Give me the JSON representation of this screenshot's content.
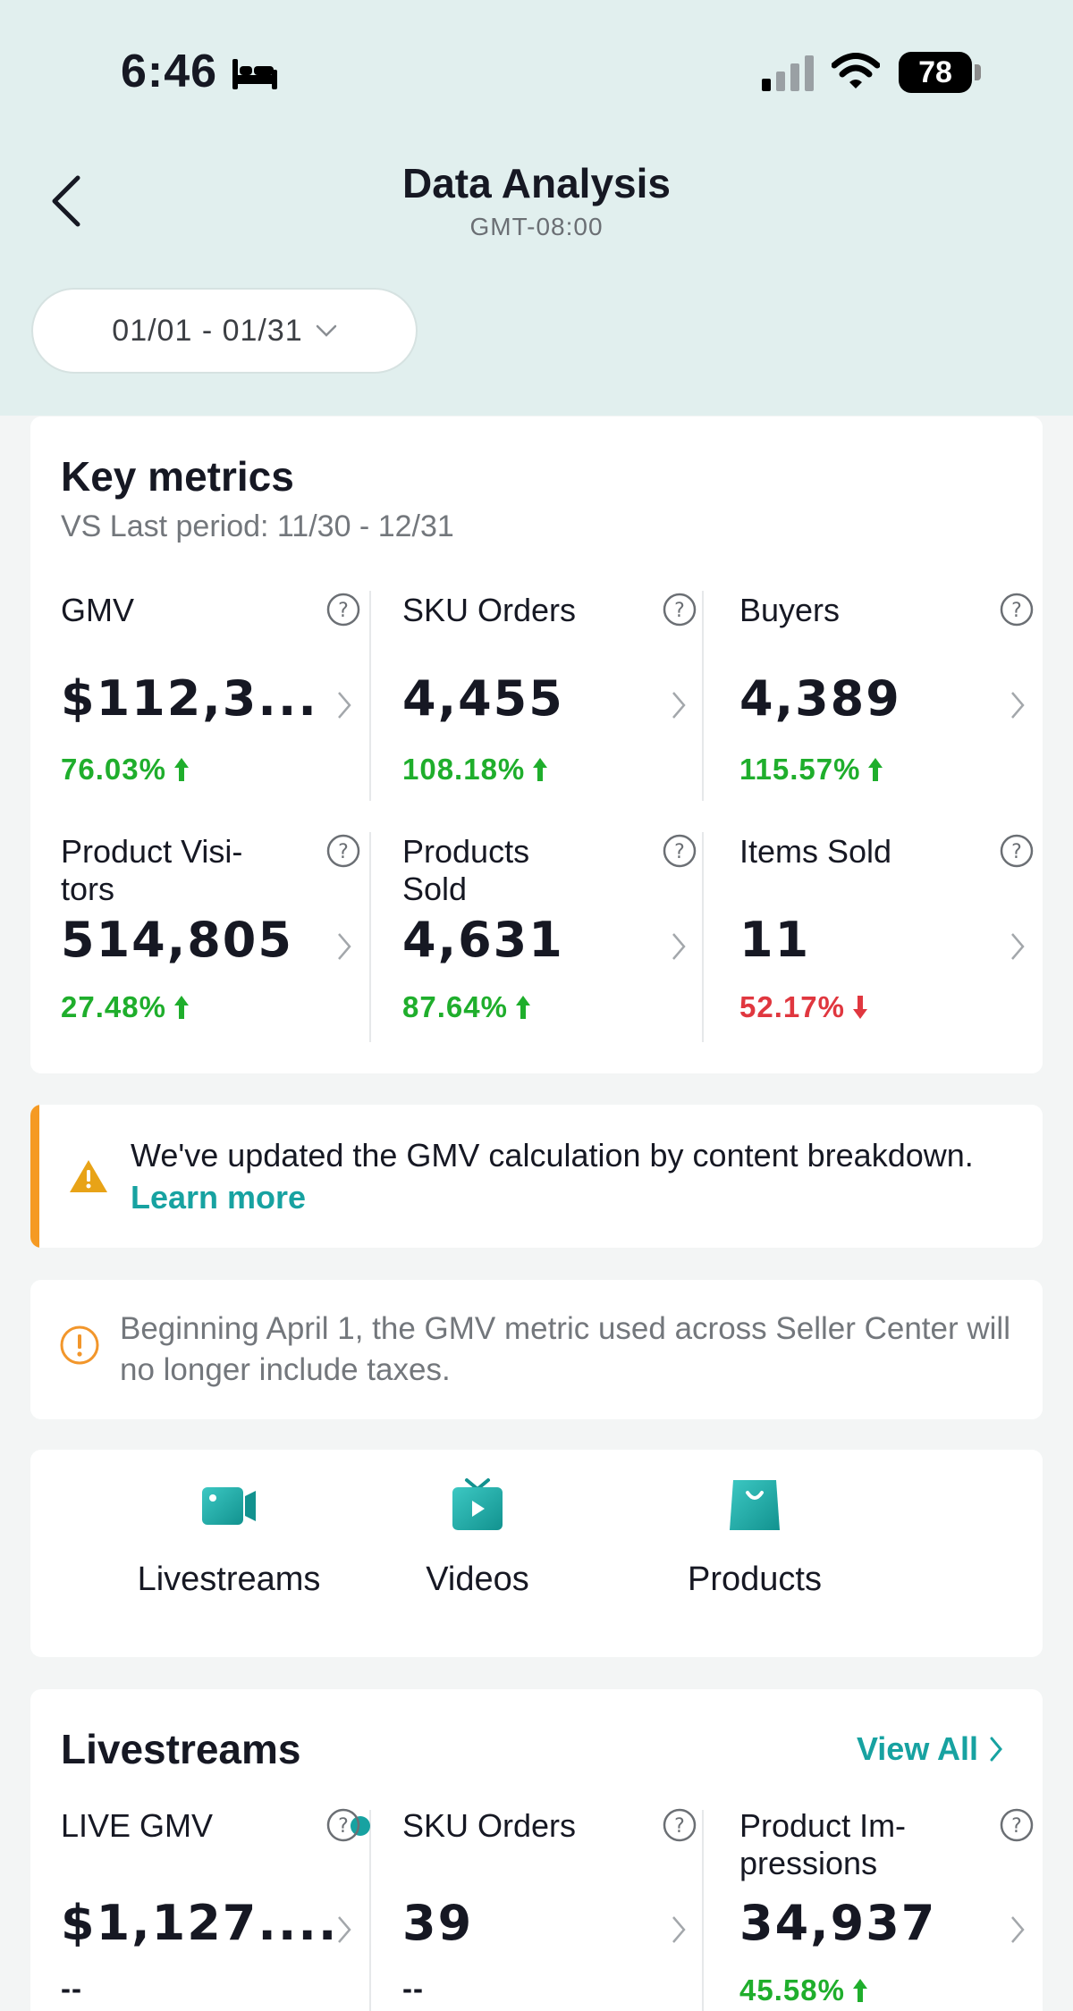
{
  "status_bar": {
    "time": "6:46",
    "battery": "78"
  },
  "nav": {
    "title": "Data Analysis",
    "subtitle": "GMT-08:00"
  },
  "date_range": "01/01 - 01/31",
  "key_metrics": {
    "title": "Key metrics",
    "subtitle": "VS Last period: 11/30 - 12/31",
    "items": [
      {
        "label": "GMV",
        "value": "$112,3...",
        "change": "76.03%",
        "direction": "up"
      },
      {
        "label": "SKU Orders",
        "value": "4,455",
        "change": "108.18%",
        "direction": "up"
      },
      {
        "label": "Buyers",
        "value": "4,389",
        "change": "115.57%",
        "direction": "up"
      },
      {
        "label": "Product Visi-\ntors",
        "value": "514,805",
        "change": "27.48%",
        "direction": "up"
      },
      {
        "label": "Products\nSold",
        "value": "4,631",
        "change": "87.64%",
        "direction": "up"
      },
      {
        "label": "Items Sold",
        "value": "11",
        "change": "52.17%",
        "direction": "down"
      }
    ]
  },
  "notices": {
    "gmv_update_text": "We've updated the GMV calculation by content breakdown.",
    "gmv_update_link": "Learn more",
    "tax_text": "Beginning April 1, the GMV metric used across Seller Center will no longer include taxes."
  },
  "shortcuts": [
    {
      "label": "Livestreams",
      "icon": "video-camera-icon"
    },
    {
      "label": "Videos",
      "icon": "tv-play-icon"
    },
    {
      "label": "Products",
      "icon": "shopping-bag-icon"
    }
  ],
  "livestreams": {
    "title": "Livestreams",
    "view_all": "View All",
    "items": [
      {
        "label": "LIVE GMV",
        "value": "$1,127....",
        "change": "--"
      },
      {
        "label": "SKU Orders",
        "value": "39",
        "change": "--"
      },
      {
        "label": "Product Im-\npressions",
        "value": "34,937",
        "change": "45.58%",
        "direction": "up"
      }
    ]
  },
  "colors": {
    "accent": "#17a2a1",
    "positive": "#1fae2c",
    "negative": "#e0373f",
    "warning": "#f59a23",
    "header_bg": "#e1efee"
  }
}
